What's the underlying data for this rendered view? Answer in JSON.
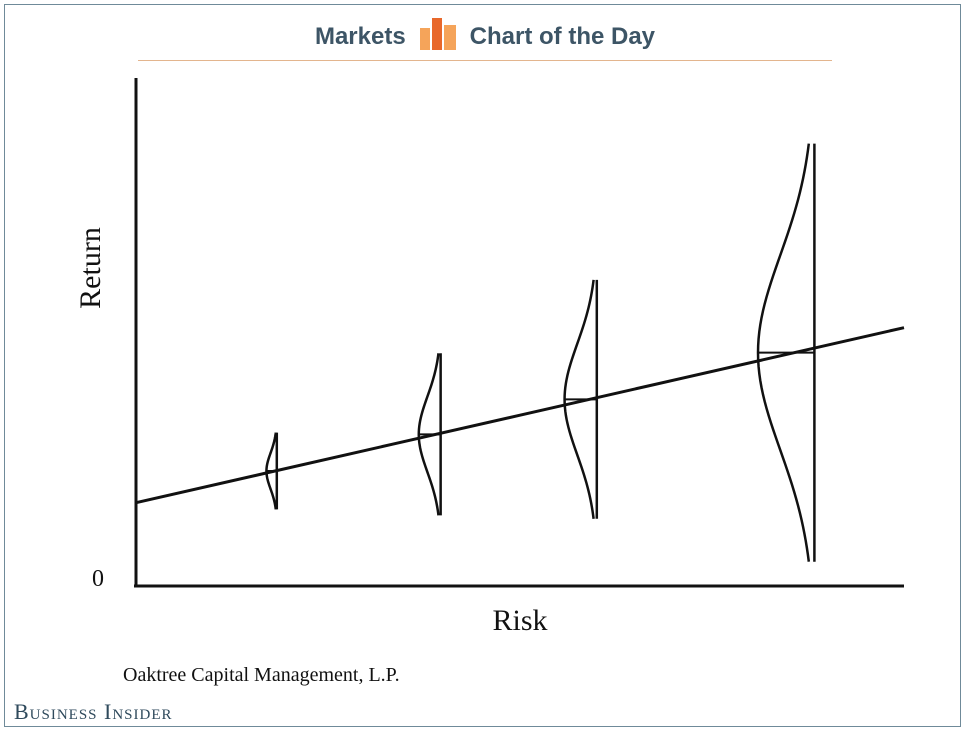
{
  "header": {
    "left_label": "Markets",
    "right_label": "Chart of the Day",
    "icon": "bar-chart-icon",
    "accent_colors": [
      "#f5a45a",
      "#e8682b"
    ],
    "text_color": "#3d5566"
  },
  "chart_data": {
    "type": "line",
    "title": "",
    "xlabel": "Risk",
    "ylabel": "Return",
    "y_tick_labels": [
      "0"
    ],
    "x": [
      0,
      1,
      2,
      3,
      4,
      5,
      6
    ],
    "series": [
      {
        "values": [
          1.0,
          1.35,
          1.7,
          2.05,
          2.4,
          2.75,
          3.1
        ]
      }
    ],
    "distributions": [
      {
        "risk": 1.1,
        "mean_return": 1.38,
        "spread": 0.45
      },
      {
        "risk": 2.38,
        "mean_return": 1.82,
        "spread": 0.95
      },
      {
        "risk": 3.6,
        "mean_return": 2.24,
        "spread": 1.4
      },
      {
        "risk": 5.3,
        "mean_return": 2.8,
        "spread": 2.45
      }
    ],
    "xlim": [
      0,
      6
    ],
    "ylim": [
      0,
      6
    ],
    "grid": false,
    "line_color": "#111111"
  },
  "source": "Oaktree Capital Management, L.P.",
  "brand": "Business Insider"
}
